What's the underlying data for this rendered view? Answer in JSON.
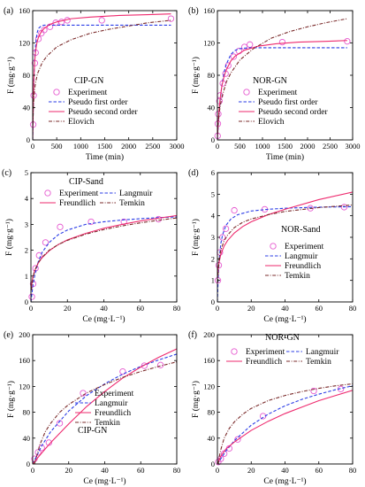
{
  "colors": {
    "experiment": "#e65ad0",
    "pseudo_first": "#2b3de6",
    "pseudo_second": "#ee2a6e",
    "elovich": "#7a2a2a",
    "langmuir": "#2b3de6",
    "freundlich": "#ee2a6e",
    "temkin": "#7a2a2a",
    "axis": "#000000"
  },
  "chart_data": [
    {
      "id": "a",
      "panel_label": "(a)",
      "type": "line",
      "title": "CIP-GN",
      "xlabel": "Time (min)",
      "ylabel": "F (mg·g⁻¹)",
      "xlim": [
        0,
        3000
      ],
      "ylim": [
        0,
        160
      ],
      "xticks": [
        0,
        500,
        1000,
        1500,
        2000,
        2500,
        3000
      ],
      "yticks": [
        0,
        40,
        80,
        120,
        160
      ],
      "legend_position": "lower-center",
      "series": [
        {
          "name": "Experiment",
          "kind": "scatter",
          "color_key": "experiment",
          "x": [
            10,
            20,
            45,
            60,
            120,
            180,
            240,
            360,
            480,
            600,
            720,
            1440,
            2880
          ],
          "y": [
            19,
            55,
            95,
            108,
            125,
            132,
            136,
            140,
            145,
            146,
            148,
            148,
            150
          ]
        },
        {
          "name": "Pseudo first order",
          "kind": "line",
          "dash": "dash",
          "color_key": "pseudo_first",
          "x": [
            0,
            20,
            40,
            60,
            90,
            120,
            180,
            240,
            360,
            500,
            1000,
            2000,
            2880
          ],
          "y": [
            0,
            64,
            99,
            118,
            132,
            138,
            141,
            142,
            142,
            142,
            142,
            142,
            142
          ]
        },
        {
          "name": "Pseudo second order",
          "kind": "line",
          "dash": "solid",
          "color_key": "pseudo_second",
          "x": [
            0,
            20,
            40,
            60,
            90,
            120,
            180,
            240,
            360,
            500,
            800,
            1200,
            1800,
            2400,
            2880
          ],
          "y": [
            0,
            70,
            96,
            110,
            121,
            127,
            134,
            138,
            143,
            146,
            150,
            152,
            154,
            155,
            156
          ]
        },
        {
          "name": "Elovich",
          "kind": "line",
          "dash": "dashdot",
          "color_key": "elovich",
          "x": [
            5,
            10,
            20,
            40,
            60,
            100,
            200,
            300,
            500,
            800,
            1200,
            1600,
            2000,
            2400,
            2880
          ],
          "y": [
            20,
            34,
            48,
            63,
            71,
            82,
            96,
            104,
            115,
            124,
            132,
            137,
            141,
            145,
            148
          ]
        }
      ]
    },
    {
      "id": "b",
      "panel_label": "(b)",
      "type": "line",
      "title": "NOR-GN",
      "xlabel": "Time (min)",
      "ylabel": "F (mg·g⁻¹)",
      "xlim": [
        0,
        3000
      ],
      "ylim": [
        0,
        160
      ],
      "xticks": [
        0,
        500,
        1000,
        1500,
        2000,
        2500,
        3000
      ],
      "yticks": [
        0,
        40,
        80,
        120,
        160
      ],
      "legend_position": "lower-center",
      "series": [
        {
          "name": "Experiment",
          "kind": "scatter",
          "color_key": "experiment",
          "x": [
            5,
            10,
            20,
            45,
            60,
            120,
            180,
            240,
            360,
            480,
            600,
            720,
            1440,
            2880
          ],
          "y": [
            5,
            20,
            32,
            48,
            55,
            70,
            82,
            92,
            103,
            110,
            115,
            118,
            121,
            122
          ]
        },
        {
          "name": "Pseudo first order",
          "kind": "line",
          "dash": "dash",
          "color_key": "pseudo_first",
          "x": [
            0,
            20,
            40,
            60,
            100,
            150,
            200,
            300,
            400,
            500,
            700,
            1000,
            2000,
            2880
          ],
          "y": [
            0,
            19,
            35,
            48,
            68,
            84,
            94,
            106,
            111,
            113,
            114,
            114,
            114,
            114
          ]
        },
        {
          "name": "Pseudo second order",
          "kind": "line",
          "dash": "solid",
          "color_key": "pseudo_second",
          "x": [
            0,
            20,
            40,
            60,
            100,
            150,
            200,
            300,
            400,
            600,
            900,
            1300,
            1800,
            2400,
            2880
          ],
          "y": [
            0,
            23,
            39,
            51,
            67,
            79,
            87,
            98,
            104,
            111,
            116,
            119,
            121,
            122,
            123
          ]
        },
        {
          "name": "Elovich",
          "kind": "line",
          "dash": "dashdot",
          "color_key": "elovich",
          "x": [
            5,
            10,
            20,
            40,
            60,
            100,
            200,
            300,
            500,
            800,
            1200,
            1600,
            2000,
            2400,
            2880
          ],
          "y": [
            8,
            14,
            22,
            33,
            41,
            53,
            72,
            83,
            99,
            113,
            126,
            134,
            140,
            145,
            150
          ]
        }
      ]
    },
    {
      "id": "c",
      "panel_label": "(c)",
      "type": "line",
      "title": "CIP-Sand",
      "xlabel": "Ce (mg·L⁻¹)",
      "ylabel": "F (mg·g⁻¹)",
      "xlim": [
        0,
        80
      ],
      "ylim": [
        0,
        5
      ],
      "xticks": [
        0,
        20,
        40,
        60,
        80
      ],
      "yticks": [
        0,
        1,
        2,
        3,
        4,
        5
      ],
      "legend_position": "top-left",
      "series": [
        {
          "name": "Experiment",
          "kind": "scatter",
          "color_key": "experiment",
          "x": [
            0.5,
            1.2,
            2.5,
            4.5,
            8,
            16,
            33,
            51,
            70
          ],
          "y": [
            0.2,
            0.7,
            1.3,
            1.8,
            2.3,
            2.9,
            3.1,
            3.1,
            3.2
          ]
        },
        {
          "name": "Langmuir",
          "kind": "line",
          "dash": "dash",
          "color_key": "langmuir",
          "x": [
            0,
            1,
            2,
            4,
            6,
            10,
            15,
            20,
            30,
            40,
            50,
            60,
            70,
            80
          ],
          "y": [
            0,
            0.58,
            1.0,
            1.55,
            1.9,
            2.3,
            2.6,
            2.78,
            3.0,
            3.1,
            3.17,
            3.22,
            3.26,
            3.29
          ]
        },
        {
          "name": "Freundlich",
          "kind": "line",
          "dash": "solid",
          "color_key": "freundlich",
          "x": [
            0.2,
            1,
            2,
            4,
            6,
            10,
            15,
            20,
            30,
            40,
            50,
            60,
            70,
            80
          ],
          "y": [
            0.55,
            0.95,
            1.2,
            1.5,
            1.7,
            1.98,
            2.22,
            2.4,
            2.65,
            2.85,
            3.0,
            3.13,
            3.24,
            3.34
          ]
        },
        {
          "name": "Temkin",
          "kind": "line",
          "dash": "dashdot",
          "color_key": "temkin",
          "x": [
            0.3,
            1,
            2,
            4,
            6,
            10,
            15,
            20,
            30,
            40,
            50,
            60,
            70,
            80
          ],
          "y": [
            0.45,
            0.9,
            1.2,
            1.52,
            1.72,
            2.0,
            2.22,
            2.38,
            2.62,
            2.8,
            2.94,
            3.06,
            3.16,
            3.25
          ]
        }
      ]
    },
    {
      "id": "d",
      "panel_label": "(d)",
      "type": "line",
      "title": "NOR-Sand",
      "xlabel": "Ce (mg·L⁻¹)",
      "ylabel": "F (mg·g⁻¹)",
      "xlim": [
        0,
        80
      ],
      "ylim": [
        0,
        6
      ],
      "xticks": [
        0,
        20,
        40,
        60,
        80
      ],
      "yticks": [
        0,
        1,
        2,
        3,
        4,
        5,
        6
      ],
      "legend_position": "center-right",
      "series": [
        {
          "name": "Experiment",
          "kind": "scatter",
          "color_key": "experiment",
          "x": [
            0.3,
            0.8,
            1.5,
            3,
            5,
            10,
            28,
            55,
            75
          ],
          "y": [
            1.0,
            1.7,
            2.3,
            3.0,
            3.4,
            4.25,
            4.3,
            4.35,
            4.4
          ]
        },
        {
          "name": "Langmuir",
          "kind": "line",
          "dash": "dash",
          "color_key": "langmuir",
          "x": [
            0,
            0.5,
            1,
            2,
            3,
            5,
            8,
            12,
            20,
            30,
            40,
            60,
            80
          ],
          "y": [
            0,
            1.2,
            1.9,
            2.7,
            3.1,
            3.55,
            3.85,
            4.05,
            4.22,
            4.3,
            4.35,
            4.4,
            4.42
          ]
        },
        {
          "name": "Freundlich",
          "kind": "line",
          "dash": "solid",
          "color_key": "freundlich",
          "x": [
            0.2,
            0.5,
            1,
            2,
            4,
            6,
            10,
            15,
            20,
            30,
            40,
            60,
            80
          ],
          "y": [
            1.2,
            1.55,
            1.85,
            2.2,
            2.6,
            2.85,
            3.2,
            3.5,
            3.72,
            4.05,
            4.3,
            4.75,
            5.1
          ]
        },
        {
          "name": "Temkin",
          "kind": "line",
          "dash": "dashdot",
          "color_key": "temkin",
          "x": [
            0.2,
            0.5,
            1,
            2,
            4,
            6,
            10,
            15,
            20,
            30,
            40,
            60,
            80
          ],
          "y": [
            0.9,
            1.5,
            1.95,
            2.4,
            2.85,
            3.1,
            3.45,
            3.7,
            3.85,
            4.05,
            4.2,
            4.38,
            4.5
          ]
        }
      ]
    },
    {
      "id": "e",
      "panel_label": "(e)",
      "type": "line",
      "title": "CIP-GN",
      "xlabel": "Ce (mg·L⁻¹)",
      "ylabel": "F (mg·g⁻¹)",
      "xlim": [
        0,
        80
      ],
      "ylim": [
        0,
        200
      ],
      "xticks": [
        0,
        20,
        40,
        60,
        80
      ],
      "yticks": [
        0,
        40,
        80,
        120,
        160,
        200
      ],
      "legend_position": "lower-right",
      "series": [
        {
          "name": "Experiment",
          "kind": "scatter",
          "color_key": "experiment",
          "x": [
            1,
            3,
            5,
            9,
            15,
            50,
            62,
            71
          ],
          "y": [
            8,
            18,
            25,
            33,
            63,
            143,
            152,
            153
          ]
        },
        {
          "name": "Langmuir",
          "kind": "line",
          "dash": "dash",
          "color_key": "langmuir",
          "x": [
            0,
            5,
            10,
            20,
            30,
            40,
            50,
            60,
            70,
            80
          ],
          "y": [
            0,
            28,
            50,
            82,
            106,
            124,
            139,
            151,
            161,
            170
          ]
        },
        {
          "name": "Freundlich",
          "kind": "line",
          "dash": "solid",
          "color_key": "freundlich",
          "x": [
            0,
            2,
            5,
            10,
            20,
            30,
            40,
            50,
            60,
            70,
            80
          ],
          "y": [
            0,
            7,
            17,
            33,
            62,
            89,
            112,
            133,
            150,
            165,
            178
          ]
        },
        {
          "name": "Temkin",
          "kind": "line",
          "dash": "dashdot",
          "color_key": "temkin",
          "x": [
            1,
            2,
            4,
            7,
            10,
            15,
            20,
            30,
            40,
            50,
            60,
            70,
            80
          ],
          "y": [
            0,
            10,
            30,
            50,
            63,
            80,
            92,
            110,
            123,
            134,
            143,
            151,
            158
          ]
        }
      ]
    },
    {
      "id": "f",
      "panel_label": "(f)",
      "type": "line",
      "title": "NOR-GN",
      "xlabel": "Ce (mg·L⁻¹)",
      "ylabel": "F (mg·g⁻¹)",
      "xlim": [
        0,
        80
      ],
      "ylim": [
        0,
        200
      ],
      "xticks": [
        0,
        20,
        40,
        60,
        80
      ],
      "yticks": [
        0,
        40,
        80,
        120,
        160,
        200
      ],
      "legend_position": "top",
      "series": [
        {
          "name": "Experiment",
          "kind": "scatter",
          "color_key": "experiment",
          "x": [
            0.5,
            2,
            4,
            7,
            12,
            27,
            57,
            73
          ],
          "y": [
            3,
            8,
            16,
            24,
            38,
            74,
            113,
            116
          ]
        },
        {
          "name": "Langmuir",
          "kind": "line",
          "dash": "dash",
          "color_key": "langmuir",
          "x": [
            0,
            5,
            10,
            20,
            30,
            40,
            50,
            60,
            70,
            80
          ],
          "y": [
            0,
            20,
            36,
            60,
            77,
            90,
            100,
            108,
            115,
            121
          ]
        },
        {
          "name": "Freundlich",
          "kind": "line",
          "dash": "solid",
          "color_key": "freundlich",
          "x": [
            0,
            2,
            5,
            10,
            20,
            30,
            40,
            50,
            60,
            70,
            80
          ],
          "y": [
            0,
            12,
            23,
            34,
            52,
            66,
            78,
            88,
            98,
            106,
            114
          ]
        },
        {
          "name": "Temkin",
          "kind": "line",
          "dash": "dashdot",
          "color_key": "temkin",
          "x": [
            0.5,
            1,
            2,
            4,
            7,
            10,
            15,
            20,
            30,
            40,
            50,
            60,
            70,
            80
          ],
          "y": [
            0,
            10,
            22,
            40,
            55,
            65,
            77,
            86,
            98,
            106,
            112,
            117,
            121,
            124
          ]
        }
      ]
    }
  ]
}
